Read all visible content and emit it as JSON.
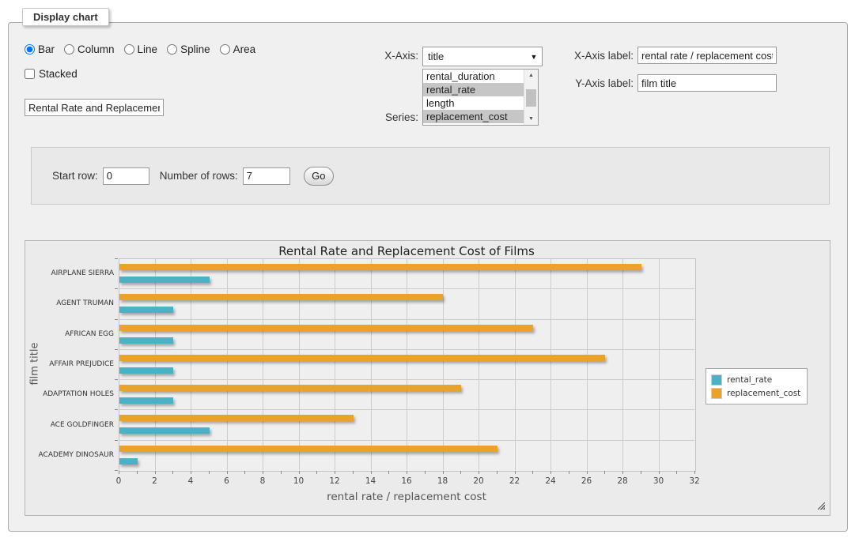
{
  "panel": {
    "legend": "Display chart"
  },
  "chart_type_options": [
    {
      "label": "Bar",
      "selected": true
    },
    {
      "label": "Column",
      "selected": false
    },
    {
      "label": "Line",
      "selected": false
    },
    {
      "label": "Spline",
      "selected": false
    },
    {
      "label": "Area",
      "selected": false
    }
  ],
  "stacked": {
    "label": "Stacked",
    "checked": false
  },
  "title_input": {
    "value": "Rental Rate and Replacement Cost of Films"
  },
  "x_axis": {
    "label": "X-Axis:",
    "selected": "title"
  },
  "series_select": {
    "label": "Series:",
    "options": [
      {
        "label": "rental_duration",
        "selected": false
      },
      {
        "label": "rental_rate",
        "selected": true
      },
      {
        "label": "length",
        "selected": false
      },
      {
        "label": "replacement_cost",
        "selected": true
      }
    ]
  },
  "x_axis_label": {
    "label": "X-Axis label:",
    "value": "rental rate / replacement cost"
  },
  "y_axis_label": {
    "label": "Y-Axis label:",
    "value": "film title"
  },
  "query": {
    "start_row_label": "Start row:",
    "start_row_value": "0",
    "num_rows_label": "Number of rows:",
    "num_rows_value": "7",
    "go_label": "Go"
  },
  "chart_data": {
    "type": "bar",
    "orientation": "horizontal",
    "title": "Rental Rate and Replacement Cost of Films",
    "xlabel": "rental rate / replacement cost",
    "ylabel": "film title",
    "categories": [
      "AIRPLANE SIERRA",
      "AGENT TRUMAN",
      "AFRICAN EGG",
      "AFFAIR PREJUDICE",
      "ADAPTATION HOLES",
      "ACE GOLDFINGER",
      "ACADEMY DINOSAUR"
    ],
    "series": [
      {
        "name": "rental_rate",
        "color": "#4bb2c5",
        "values": [
          4.99,
          2.99,
          2.99,
          2.99,
          2.99,
          4.99,
          0.99
        ]
      },
      {
        "name": "replacement_cost",
        "color": "#eaa228",
        "values": [
          28.99,
          17.99,
          22.99,
          26.99,
          18.99,
          12.99,
          20.99
        ]
      }
    ],
    "xlim": [
      0,
      32
    ],
    "x_tick_step": 2,
    "x_minor_tick_step": 1,
    "grid": true,
    "legend_position": "right"
  }
}
